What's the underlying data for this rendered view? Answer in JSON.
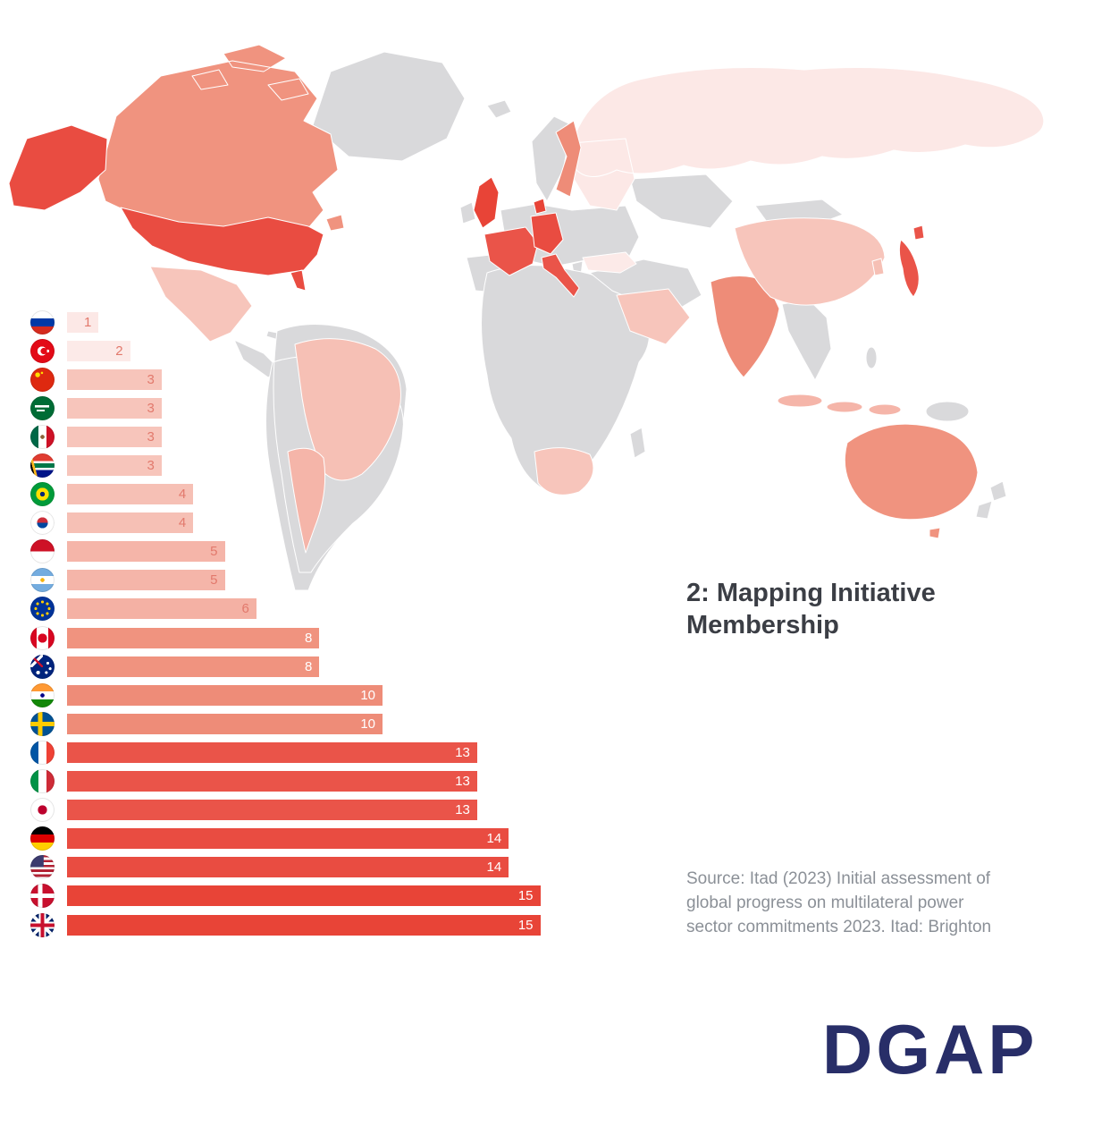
{
  "title": "2: Mapping Initiative Membership",
  "source_text": "Source: Itad (2023) Initial assessment of\nglobal progress on multilateral power\nsector commitments 2023. Itad: Brighton",
  "logo_text": "DGAP",
  "colors": {
    "background": "#ffffff",
    "map_default": "#d9d9db",
    "title_text": "#3b3e45",
    "source_text": "#8b9097",
    "logo": "#282e68",
    "bar_label_dark": "#e2796c",
    "bar_label_light": "#ffffff",
    "value_scale": {
      "1": "#fce8e6",
      "2": "#fceae8",
      "3": "#f7c5bb",
      "4": "#f6c0b5",
      "5": "#f5b5a9",
      "6": "#f4b1a4",
      "8": "#f0937f",
      "10": "#ee8c78",
      "13": "#ea5449",
      "14": "#e94c41",
      "15": "#e84437"
    }
  },
  "chart_data": {
    "type": "bar",
    "orientation": "horizontal",
    "title": "2: Mapping Initiative Membership",
    "xlabel": "",
    "ylabel": "",
    "xlim": [
      0,
      15
    ],
    "categories": [
      "Russia",
      "Türkiye",
      "China",
      "Saudi Arabia",
      "Mexico",
      "South Africa",
      "Brazil",
      "South Korea",
      "Indonesia",
      "Argentina",
      "European Union",
      "Canada",
      "Australia",
      "India",
      "Sweden",
      "France",
      "Italy",
      "Japan",
      "Germany",
      "United States",
      "Denmark",
      "United Kingdom"
    ],
    "values": [
      1,
      2,
      3,
      3,
      3,
      3,
      4,
      4,
      5,
      5,
      6,
      8,
      8,
      10,
      10,
      13,
      13,
      13,
      14,
      14,
      15,
      15
    ],
    "flags": [
      "ru",
      "tr",
      "cn",
      "sa",
      "mx",
      "za",
      "br",
      "kr",
      "id",
      "ar",
      "eu",
      "ca",
      "au",
      "in",
      "se",
      "fr",
      "it",
      "jp",
      "de",
      "us",
      "dk",
      "gb"
    ],
    "legend": "none",
    "grid": false
  },
  "map": {
    "type": "choropleth",
    "regions": {
      "ru": 1,
      "ca": 8,
      "us": 14,
      "mx": 3,
      "br": 4,
      "ar": 5,
      "gb": 15,
      "fr": 13,
      "de": 14,
      "it": 13,
      "dk": 15,
      "se": 10,
      "tr": 2,
      "sa": 3,
      "za": 3,
      "in": 10,
      "cn": 3,
      "jp": 13,
      "kr": 4,
      "id": 5,
      "au": 8
    }
  }
}
